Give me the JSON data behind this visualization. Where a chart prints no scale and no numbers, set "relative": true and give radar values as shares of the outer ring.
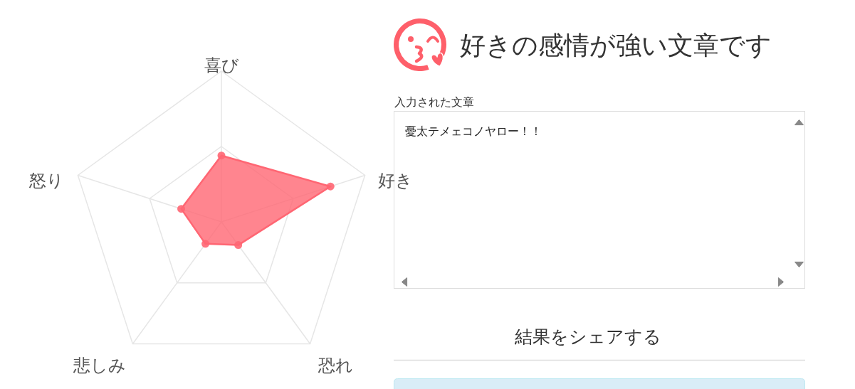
{
  "chart_data": [
    {
      "type": "radar",
      "categories": [
        "喜び",
        "好き",
        "恐れ",
        "悲しみ",
        "怒り"
      ],
      "relative": true,
      "values": [
        0.44,
        0.76,
        0.19,
        0.18,
        0.28
      ],
      "color": "#ff6673",
      "grid": true,
      "marker": "circle"
    },
    {
      "type": "other",
      "title": "好きの感情が強い文章です",
      "annotations": [
        "入力された文章",
        "憂太テメェコノヤロー！！",
        "結果をシェアする"
      ]
    }
  ]
}
